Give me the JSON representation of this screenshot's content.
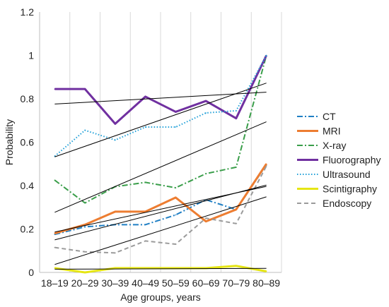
{
  "chart_data": {
    "type": "line",
    "title": "",
    "xlabel": "Age groups, years",
    "ylabel": "Probability",
    "ylim": [
      0,
      1.2
    ],
    "yticks": [
      "0",
      "0.2",
      "0.4",
      "0.6",
      "0.8",
      "1",
      "1.2"
    ],
    "grid": "vertical",
    "legend_position": "right",
    "categories": [
      "18–19",
      "20–29",
      "30–39",
      "40–49",
      "50–59",
      "60–69",
      "70–79",
      "80–89"
    ],
    "series": [
      {
        "name": "CT",
        "color": "#1f7fc4",
        "dash": "dashdot",
        "values": [
          0.175,
          0.21,
          0.22,
          0.22,
          0.265,
          0.335,
          0.29,
          0.495
        ]
      },
      {
        "name": "MRI",
        "color": "#ed7d31",
        "dash": "solid",
        "values": [
          0.18,
          0.22,
          0.28,
          0.28,
          0.345,
          0.235,
          0.29,
          0.5
        ]
      },
      {
        "name": "X-ray",
        "color": "#3a9e4a",
        "dash": "dashdot",
        "values": [
          0.425,
          0.32,
          0.395,
          0.415,
          0.39,
          0.455,
          0.485,
          1.0
        ]
      },
      {
        "name": "Fluorography",
        "color": "#7030a0",
        "dash": "solid",
        "values": [
          0.845,
          0.845,
          0.685,
          0.81,
          0.74,
          0.79,
          0.71,
          1.0
        ]
      },
      {
        "name": "Ultrasound",
        "color": "#21a0d8",
        "dash": "dotted",
        "values": [
          0.535,
          0.655,
          0.61,
          0.67,
          0.67,
          0.735,
          0.745,
          1.0
        ]
      },
      {
        "name": "Scintigraphy",
        "color": "#e6e614",
        "dash": "solid",
        "values": [
          0.02,
          0.0,
          0.02,
          0.02,
          0.02,
          0.02,
          0.03,
          0.005
        ]
      },
      {
        "name": "Endoscopy",
        "color": "#9b9b9b",
        "dash": "dashed",
        "values": [
          0.115,
          0.095,
          0.09,
          0.145,
          0.13,
          0.25,
          0.225,
          0.49
        ]
      }
    ],
    "trendlines": true
  }
}
